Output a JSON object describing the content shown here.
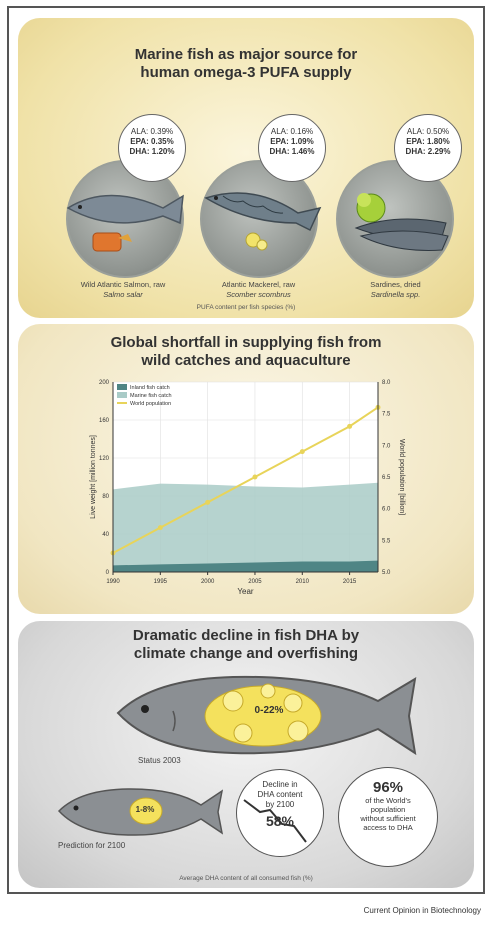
{
  "panel1": {
    "title_line1": "Marine fish as major source for",
    "title_line2": "human omega-3 PUFA supply",
    "fish": [
      {
        "ala": "ALA: 0.39%",
        "epa": "EPA: 0.35%",
        "dha": "DHA: 1.20%",
        "caption1": "Wild Atlantic Salmon, raw",
        "caption2": "Salmo salar"
      },
      {
        "ala": "ALA: 0.16%",
        "epa": "EPA: 1.09%",
        "dha": "DHA: 1.46%",
        "caption1": "Atlantic Mackerel, raw",
        "caption2": "Scomber scombrus"
      },
      {
        "ala": "ALA: 0.50%",
        "epa": "EPA: 1.80%",
        "dha": "DHA: 2.29%",
        "caption1": "Sardines, dried",
        "caption2": "Sardinella spp."
      }
    ],
    "footnote": "PUFA content per fish species (%)"
  },
  "panel2": {
    "title_line1": "Global shortfall in supplying fish from",
    "title_line2": "wild catches and aquaculture",
    "chart_data": {
      "type": "area",
      "xlabel": "Year",
      "ylabel": "Live weight [million tonnes]",
      "ylabel2": "World population [billion]",
      "x": [
        1990,
        1995,
        2000,
        2005,
        2010,
        2015,
        2018
      ],
      "xticks": [
        "1990",
        "1995",
        "2000",
        "2005",
        "2010",
        "2015"
      ],
      "ylim": [
        0,
        200
      ],
      "yticks": [
        "0",
        "40",
        "80",
        "120",
        "160",
        "200"
      ],
      "y2lim": [
        5.0,
        8.0
      ],
      "y2ticks": [
        "5.0",
        "5.5",
        "6.0",
        "6.5",
        "7.0",
        "7.5",
        "8.0"
      ],
      "series": [
        {
          "name": "Inland fish catch",
          "axis": "left",
          "values": [
            7,
            8,
            9,
            10,
            11,
            11,
            12
          ],
          "color": "#4f8585"
        },
        {
          "name": "Marine fish catch",
          "axis": "left",
          "values": [
            80,
            85,
            83,
            80,
            78,
            81,
            82
          ],
          "color": "#a9cbc7"
        },
        {
          "name": "World population",
          "axis": "right",
          "values": [
            5.3,
            5.7,
            6.1,
            6.5,
            6.9,
            7.3,
            7.6
          ],
          "color": "#e8d45a"
        }
      ],
      "legend_position": "top-left"
    }
  },
  "panel3": {
    "title_line1": "Dramatic decline in fish DHA by",
    "title_line2": "climate change and overfishing",
    "big_fish_value": "0-22%",
    "big_fish_label": "Status 2003",
    "small_fish_value": "1-8%",
    "small_fish_label": "Prediction for 2100",
    "decline_text1": "Decline in",
    "decline_text2": "DHA content",
    "decline_text3": "by 2100",
    "decline_value": "58%",
    "pop_value": "96%",
    "pop_text1": "of the World's",
    "pop_text2": "population",
    "pop_text3": "without sufficient",
    "pop_text4": "access to DHA",
    "footnote": "Average DHA content of all consumed fish (%)"
  },
  "source": "Current Opinion in Biotechnology"
}
